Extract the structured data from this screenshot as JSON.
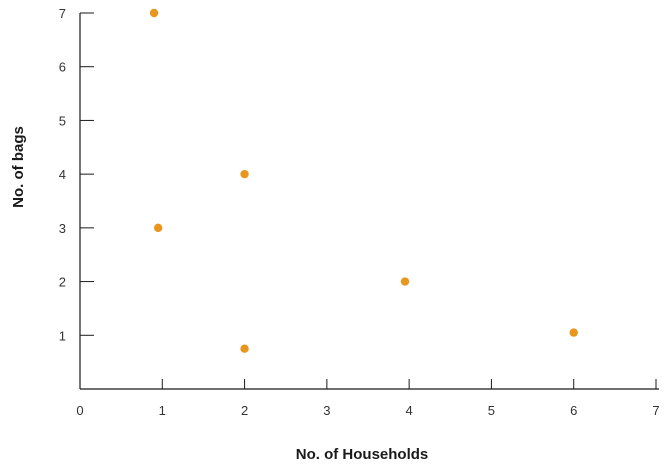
{
  "chart_data": {
    "type": "scatter",
    "title": "",
    "xlabel": "No. of Households",
    "ylabel": "No. of bags",
    "xlim": [
      0,
      7
    ],
    "ylim": [
      0,
      7
    ],
    "x_ticks": [
      "0",
      "1",
      "2",
      "3",
      "4",
      "5",
      "6",
      "7"
    ],
    "y_ticks": [
      "1",
      "2",
      "3",
      "4",
      "5",
      "6",
      "7"
    ],
    "grid": false,
    "points": [
      {
        "x": 0.9,
        "y": 7.0
      },
      {
        "x": 0.95,
        "y": 3.0
      },
      {
        "x": 2.0,
        "y": 4.0
      },
      {
        "x": 2.0,
        "y": 0.75
      },
      {
        "x": 3.95,
        "y": 2.0
      },
      {
        "x": 6.0,
        "y": 1.05
      }
    ],
    "point_color": "#E8961E"
  }
}
